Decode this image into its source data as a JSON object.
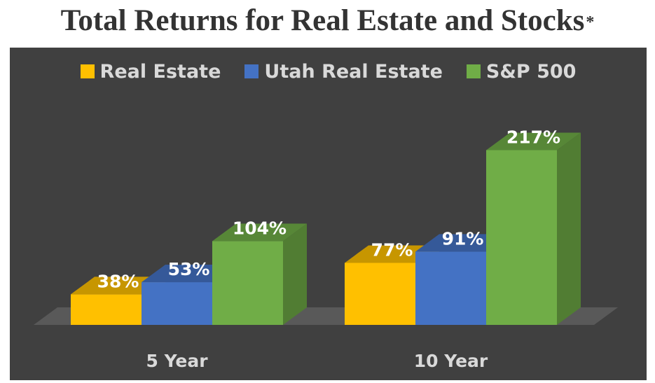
{
  "title": "Total Returns for Real Estate and Stocks",
  "title_mark": "*",
  "chart_data": {
    "type": "bar",
    "categories": [
      "5 Year",
      "10 Year"
    ],
    "series": [
      {
        "name": "Real Estate",
        "values": [
          38,
          77
        ],
        "color": "#FFC000"
      },
      {
        "name": "Utah Real Estate",
        "values": [
          53,
          91
        ],
        "color": "#4472C4"
      },
      {
        "name": "S&P 500",
        "values": [
          104,
          217
        ],
        "color": "#70AD47"
      }
    ],
    "value_suffix": "%",
    "legend_position": "top",
    "grid": false,
    "background": "#404040",
    "style": "3d-clustered-column"
  }
}
